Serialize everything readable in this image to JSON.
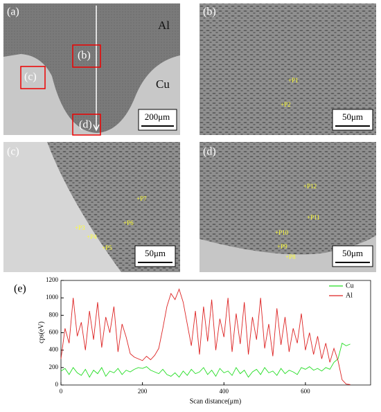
{
  "figure": {
    "panels": [
      {
        "label": "(a)",
        "material_top": "Al",
        "material_bottom": "Cu",
        "boxes": [
          "(b)",
          "(c)",
          "(d)"
        ],
        "scale_bar": "200μm"
      },
      {
        "label": "(b)",
        "points": [
          "+P1",
          "+P2"
        ],
        "scale_bar": "50μm"
      },
      {
        "label": "(c)",
        "points": [
          "+P7",
          "+P3",
          "+P4",
          "+P6",
          "+P5"
        ],
        "scale_bar": "50μm"
      },
      {
        "label": "(d)",
        "points": [
          "+P12",
          "+P11",
          "+P10",
          "+P9",
          "+P8"
        ],
        "scale_bar": "50μm"
      }
    ]
  },
  "chart_data": {
    "type": "line",
    "panel_label": "(e)",
    "x_label": "Scan distance(μm)",
    "y_label": "cps(eV)",
    "xlim": [
      0,
      760
    ],
    "ylim": [
      0,
      1200
    ],
    "xticks": [
      0,
      200,
      400,
      600
    ],
    "yticks": [
      0,
      200,
      400,
      600,
      800,
      1000,
      1200
    ],
    "legend": "upper right",
    "x": [
      0,
      10,
      20,
      30,
      40,
      50,
      60,
      70,
      80,
      90,
      100,
      110,
      120,
      130,
      140,
      150,
      160,
      170,
      180,
      190,
      200,
      210,
      220,
      230,
      240,
      250,
      260,
      270,
      280,
      290,
      300,
      310,
      320,
      330,
      340,
      350,
      360,
      370,
      380,
      390,
      400,
      410,
      420,
      430,
      440,
      450,
      460,
      470,
      480,
      490,
      500,
      510,
      520,
      530,
      540,
      550,
      560,
      570,
      580,
      590,
      600,
      610,
      620,
      630,
      640,
      650,
      660,
      670,
      680,
      690,
      700,
      710
    ],
    "series": [
      {
        "name": "Cu",
        "color": "#22dd22",
        "values": [
          160,
          190,
          120,
          200,
          140,
          110,
          180,
          90,
          170,
          130,
          200,
          100,
          160,
          140,
          190,
          120,
          170,
          150,
          180,
          200,
          190,
          210,
          170,
          150,
          130,
          180,
          120,
          100,
          140,
          90,
          160,
          110,
          180,
          130,
          150,
          200,
          120,
          170,
          100,
          190,
          140,
          160,
          110,
          200,
          130,
          170,
          90,
          150,
          180,
          120,
          200,
          140,
          160,
          110,
          190,
          130,
          170,
          150,
          120,
          200,
          180,
          210,
          170,
          190,
          160,
          200,
          180,
          260,
          300,
          480,
          450,
          470
        ]
      },
      {
        "name": "Al",
        "color": "#dd2222",
        "values": [
          300,
          650,
          480,
          1000,
          560,
          720,
          400,
          850,
          520,
          950,
          430,
          780,
          600,
          900,
          380,
          700,
          550,
          360,
          320,
          300,
          280,
          330,
          290,
          340,
          420,
          650,
          900,
          1050,
          980,
          1100,
          950,
          700,
          450,
          850,
          350,
          900,
          500,
          980,
          400,
          760,
          550,
          1000,
          380,
          820,
          470,
          950,
          350,
          780,
          520,
          1000,
          420,
          700,
          330,
          880,
          460,
          780,
          380,
          650,
          480,
          820,
          400,
          600,
          350,
          560,
          300,
          480,
          260,
          420,
          280,
          60,
          10,
          5
        ]
      }
    ]
  }
}
